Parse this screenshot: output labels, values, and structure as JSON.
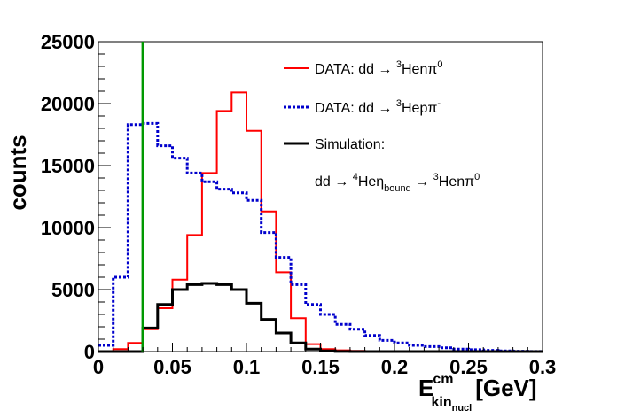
{
  "chart_data": {
    "type": "line",
    "subtype": "step-histogram",
    "xlabel_main": "E",
    "xlabel_sup": "cm",
    "xlabel_sub": "kin",
    "xlabel_subsub": "nucl",
    "xlabel_unit": "[GeV]",
    "ylabel": "counts",
    "xlim": [
      0,
      0.3
    ],
    "ylim": [
      0,
      25000
    ],
    "x_ticks": [
      0,
      0.05,
      0.1,
      0.15,
      0.2,
      0.25,
      0.3
    ],
    "x_tick_labels": [
      "0",
      "0.05",
      "0.1",
      "0.15",
      "0.2",
      "0.25",
      "0.3"
    ],
    "y_ticks": [
      0,
      5000,
      10000,
      15000,
      20000,
      25000
    ],
    "y_tick_labels": [
      "0",
      "5000",
      "10000",
      "15000",
      "20000",
      "25000"
    ],
    "cut_line_x": 0.03,
    "bin_edges": [
      0,
      0.01,
      0.02,
      0.03,
      0.04,
      0.05,
      0.06,
      0.07,
      0.08,
      0.09,
      0.1,
      0.11,
      0.12,
      0.13,
      0.14,
      0.15,
      0.16,
      0.17,
      0.18,
      0.19,
      0.2,
      0.21,
      0.22,
      0.23,
      0.24,
      0.25,
      0.26,
      0.27,
      0.28,
      0.29,
      0.3
    ],
    "series": [
      {
        "name": "data_pi0",
        "style": "solid",
        "color": "#ff0000",
        "values": [
          0,
          200,
          700,
          1800,
          3500,
          5800,
          9400,
          14400,
          19400,
          20900,
          17800,
          11300,
          6400,
          2700,
          600,
          200,
          100,
          50,
          20,
          10,
          0,
          0,
          0,
          0,
          0,
          0,
          0,
          0,
          0,
          0
        ]
      },
      {
        "name": "data_pim",
        "style": "dotted",
        "color": "#0000cc",
        "values": [
          500,
          6000,
          18300,
          18400,
          16600,
          15600,
          14400,
          13700,
          13100,
          12800,
          12200,
          9600,
          7600,
          5400,
          3800,
          3000,
          2200,
          1800,
          1300,
          900,
          700,
          500,
          400,
          300,
          200,
          150,
          100,
          50,
          30,
          10
        ]
      },
      {
        "name": "simulation",
        "style": "solid-thick",
        "color": "#000000",
        "values": [
          0,
          0,
          0,
          1900,
          3800,
          5000,
          5400,
          5500,
          5400,
          5000,
          3900,
          2600,
          1500,
          700,
          200,
          50,
          10,
          0,
          0,
          0,
          0,
          0,
          0,
          0,
          0,
          0,
          0,
          0,
          0,
          0
        ]
      }
    ],
    "legend": [
      {
        "series": "data_pi0",
        "text": "DATA: dd → ",
        "sup1": "3",
        "rest1": "Henπ",
        "sup2": "0"
      },
      {
        "series": "data_pim",
        "text": "DATA: dd → ",
        "sup1": "3",
        "rest1": "Hepπ",
        "sup2": "-"
      },
      {
        "series": "simulation",
        "text": "Simulation:"
      },
      {
        "series": "",
        "text": "dd → ",
        "sup1": "4",
        "rest1": "Heη",
        "sub1": "bound",
        "arrow": " → ",
        "sup2": "3",
        "rest2": "Henπ",
        "sup3": "0"
      }
    ]
  }
}
